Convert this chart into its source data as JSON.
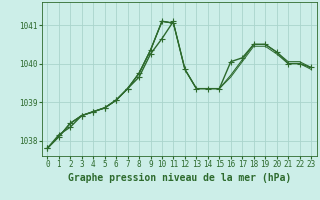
{
  "title": "Graphe pression niveau de la mer (hPa)",
  "bg_color": "#cceee8",
  "grid_color": "#aad4cc",
  "line_color": "#2d6a2d",
  "marker_color": "#2d6a2d",
  "xlim": [
    -0.5,
    23.5
  ],
  "ylim": [
    1037.6,
    1041.6
  ],
  "yticks": [
    1038,
    1039,
    1040,
    1041
  ],
  "xticks": [
    0,
    1,
    2,
    3,
    4,
    5,
    6,
    7,
    8,
    9,
    10,
    11,
    12,
    13,
    14,
    15,
    16,
    17,
    18,
    19,
    20,
    21,
    22,
    23
  ],
  "series": [
    {
      "x": [
        0,
        1,
        2,
        3,
        4,
        5,
        6,
        7,
        8,
        9,
        10,
        11
      ],
      "y": [
        1037.8,
        1038.15,
        1038.35,
        1038.65,
        1038.75,
        1038.85,
        1039.05,
        1039.35,
        1039.65,
        1040.25,
        1040.65,
        1041.1
      ],
      "marker": true,
      "lw": 1.0
    },
    {
      "x": [
        0,
        1,
        2,
        3,
        4,
        5,
        6,
        7,
        8,
        9,
        10,
        11,
        12,
        13,
        14,
        15,
        16,
        17,
        18,
        19,
        20,
        21,
        22,
        23
      ],
      "y": [
        1037.8,
        1038.1,
        1038.45,
        1038.65,
        1038.75,
        1038.85,
        1039.05,
        1039.35,
        1039.75,
        1040.35,
        1041.1,
        1041.05,
        1039.85,
        1039.35,
        1039.35,
        1039.35,
        1040.05,
        1040.15,
        1040.5,
        1040.5,
        1040.3,
        1040.0,
        1040.0,
        1039.9
      ],
      "marker": true,
      "lw": 1.0
    },
    {
      "x": [
        0,
        1,
        2,
        3,
        4,
        5,
        6,
        7,
        8,
        9,
        10,
        11,
        12,
        13,
        14,
        15,
        16,
        17,
        18,
        19,
        20,
        21,
        22,
        23
      ],
      "y": [
        1037.8,
        1038.1,
        1038.45,
        1038.65,
        1038.75,
        1038.85,
        1039.05,
        1039.35,
        1039.75,
        1040.35,
        1041.1,
        1041.05,
        1039.85,
        1039.35,
        1039.35,
        1039.35,
        1039.7,
        1040.1,
        1040.5,
        1040.5,
        1040.3,
        1040.05,
        1040.05,
        1039.9
      ],
      "marker": false,
      "lw": 0.8
    },
    {
      "x": [
        0,
        1,
        2,
        3,
        4,
        5,
        6,
        7,
        8,
        9,
        10,
        11,
        12,
        13,
        14,
        15,
        16,
        17,
        18,
        19,
        20,
        21,
        22,
        23
      ],
      "y": [
        1037.8,
        1038.1,
        1038.45,
        1038.65,
        1038.75,
        1038.85,
        1039.05,
        1039.35,
        1039.75,
        1040.35,
        1041.1,
        1041.05,
        1039.85,
        1039.35,
        1039.35,
        1039.35,
        1039.65,
        1040.05,
        1040.45,
        1040.45,
        1040.25,
        1040.0,
        1040.0,
        1039.85
      ],
      "marker": false,
      "lw": 0.7
    }
  ],
  "title_fontsize": 7,
  "tick_fontsize": 5.5
}
